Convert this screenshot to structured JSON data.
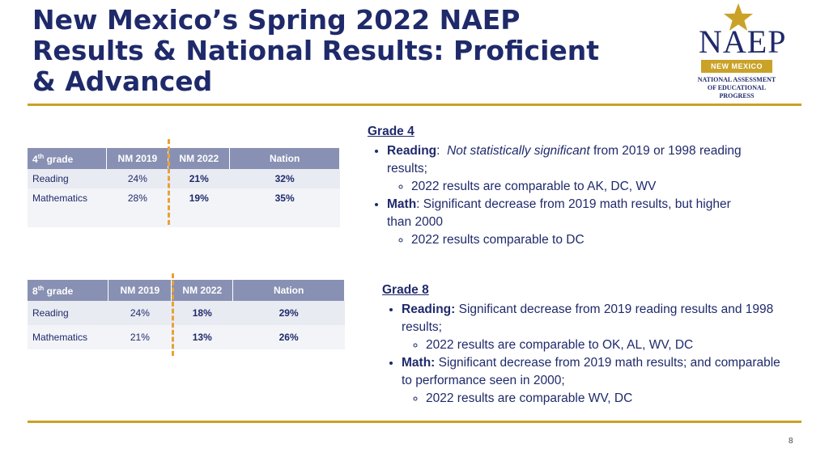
{
  "slide": {
    "title": "New Mexico’s Spring 2022 NAEP Results & National Results: Proficient & Advanced",
    "page_number": "8"
  },
  "logo": {
    "word": "NAEP",
    "badge": "NEW MEXICO",
    "sub_line1": "NATIONAL ASSESSMENT",
    "sub_line2": "OF EDUCATIONAL",
    "sub_line3": "PROGRESS",
    "star_color": "#c9a227"
  },
  "colors": {
    "navy": "#1f2a6b",
    "gold": "#c9a227",
    "header_bg": "#8891b3",
    "dash": "#e8a13a"
  },
  "grade4_table": {
    "grade_num": "4",
    "grade_suffix": "th",
    "grade_word": "grade",
    "headers": [
      "NM 2019",
      "NM 2022",
      "Nation"
    ],
    "rows": [
      {
        "subject": "Reading",
        "nm2019": "24%",
        "nm2022": "21%",
        "nation": "32%"
      },
      {
        "subject": "Mathematics",
        "nm2019": "28%",
        "nm2022": "19%",
        "nation": "35%"
      }
    ]
  },
  "grade8_table": {
    "grade_num": "8",
    "grade_suffix": "th",
    "grade_word": "grade",
    "headers": [
      "NM 2019",
      "NM 2022",
      "Nation"
    ],
    "rows": [
      {
        "subject": "Reading",
        "nm2019": "24%",
        "nm2022": "18%",
        "nation": "29%"
      },
      {
        "subject": "Mathematics",
        "nm2019": "21%",
        "nm2022": "13%",
        "nation": "26%"
      }
    ]
  },
  "grade4_notes": {
    "heading": "Grade 4",
    "reading_label": "Reading",
    "reading_italic": "Not statistically significant",
    "reading_rest": " from 2019 or 1998 reading results;",
    "reading_sub": "2022 results are comparable to AK, DC, WV",
    "math_label": "Math",
    "math_rest": ": Significant decrease from 2019 math results, but higher than 2000",
    "math_sub": "2022 results comparable to DC"
  },
  "grade8_notes": {
    "heading": "Grade 8",
    "reading_label": "Reading:",
    "reading_rest": " Significant decrease from 2019 reading results and 1998 results;",
    "reading_sub": "2022 results are comparable to OK, AL, WV, DC",
    "math_label": "Math:",
    "math_rest": " Significant decrease from 2019 math results; and comparable to performance seen in 2000;",
    "math_sub": "2022 results are comparable WV, DC"
  }
}
